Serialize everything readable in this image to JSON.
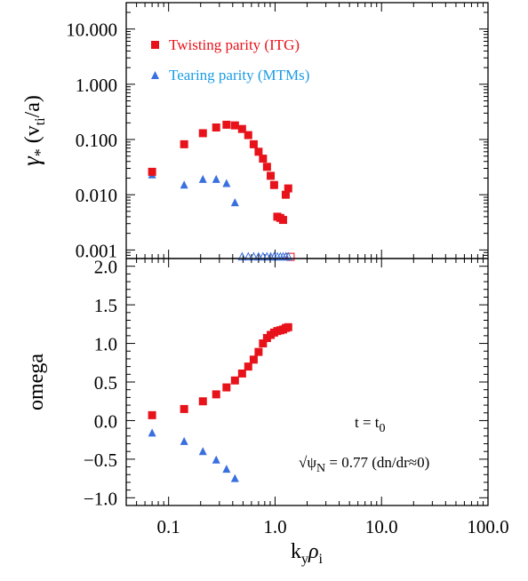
{
  "colors": {
    "twisting": "#e8121a",
    "tearing": "#3a6fe0",
    "tearing_legend_text": "#1a9be6",
    "axis": "#000000"
  },
  "chart_data": [
    {
      "type": "scatter",
      "xscale": "log",
      "yscale": "log",
      "xlim": [
        0.04,
        100
      ],
      "ylim": [
        0.0007,
        30
      ],
      "grid": false,
      "legend_position": "top-left",
      "ylabel": {
        "main": "γ",
        "star": "*",
        "open": "(v",
        "sub": "ti",
        "close": "/a)"
      },
      "yticks": [
        {
          "value": 10,
          "label": "10.000"
        },
        {
          "value": 1,
          "label": "1.000"
        },
        {
          "value": 0.1,
          "label": "0.100"
        },
        {
          "value": 0.01,
          "label": "0.010"
        },
        {
          "value": 0.001,
          "label": "0.001"
        }
      ],
      "series": [
        {
          "name": "Twisting parity (ITG)",
          "marker": "filled-square",
          "color": "#e8121a",
          "x": [
            0.07,
            0.14,
            0.21,
            0.28,
            0.35,
            0.42,
            0.49,
            0.56,
            0.63,
            0.7,
            0.77,
            0.84,
            0.91,
            0.98,
            1.05,
            1.12,
            1.19,
            1.26,
            1.33
          ],
          "y": [
            0.026,
            0.082,
            0.13,
            0.165,
            0.185,
            0.18,
            0.155,
            0.12,
            0.082,
            0.06,
            0.045,
            0.032,
            0.022,
            0.015,
            0.004,
            0.0038,
            0.0035,
            0.01,
            0.013
          ]
        },
        {
          "name": "Tearing parity (MTMs)",
          "marker": "filled-triangle",
          "color": "#3a6fe0",
          "x": [
            0.07,
            0.14,
            0.21,
            0.28,
            0.35,
            0.42
          ],
          "y": [
            0.023,
            0.015,
            0.019,
            0.019,
            0.016,
            0.0072
          ]
        },
        {
          "name": "",
          "marker": "open-triangle",
          "color": "#3a6fe0",
          "x": [
            0.49,
            0.56,
            0.63,
            0.7,
            0.77,
            0.84,
            0.91,
            0.98,
            1.05,
            1.12,
            1.19,
            1.26,
            1.33
          ],
          "y": [
            0.00075,
            0.00075,
            0.00075,
            0.00075,
            0.00075,
            0.00075,
            0.00075,
            0.00075,
            0.00075,
            0.00075,
            0.00075,
            0.00075,
            0.00075
          ]
        },
        {
          "name": "",
          "marker": "open-square",
          "color": "#e8121a",
          "x": [
            1.4
          ],
          "y": [
            0.00075
          ]
        }
      ]
    },
    {
      "type": "scatter",
      "xscale": "log",
      "xlim": [
        0.04,
        100
      ],
      "ylim": [
        -1.1,
        2.1
      ],
      "grid": false,
      "ylabel": "omega",
      "xlabel": {
        "main": "k",
        "sub1": "y",
        "rho": "ρ",
        "sub2": "i"
      },
      "xticks": [
        {
          "value": 0.1,
          "label": "0.1"
        },
        {
          "value": 1,
          "label": "1.0"
        },
        {
          "value": 10,
          "label": "10.0"
        },
        {
          "value": 100,
          "label": "100.0"
        }
      ],
      "yticks": [
        {
          "value": 2.0,
          "label": "2.0"
        },
        {
          "value": 1.5,
          "label": "1.5"
        },
        {
          "value": 1.0,
          "label": "1.0"
        },
        {
          "value": 0.5,
          "label": "0.5"
        },
        {
          "value": 0.0,
          "label": "0.0"
        },
        {
          "value": -0.5,
          "label": "−0.5"
        },
        {
          "value": -1.0,
          "label": "−1.0"
        }
      ],
      "annotations": {
        "time_main": "t = t",
        "time_sub": "0",
        "psi_root": "√ψ",
        "psi_sub": "N",
        "psi_rest": " = 0.77 (dn/dr≈0)"
      },
      "series": [
        {
          "name": "Twisting parity (ITG)",
          "marker": "filled-square",
          "color": "#e8121a",
          "x": [
            0.07,
            0.14,
            0.21,
            0.28,
            0.35,
            0.42,
            0.49,
            0.56,
            0.63,
            0.7,
            0.77,
            0.84,
            0.91,
            0.98,
            1.05,
            1.12,
            1.19,
            1.26,
            1.33
          ],
          "y": [
            0.07,
            0.15,
            0.25,
            0.34,
            0.43,
            0.52,
            0.61,
            0.7,
            0.79,
            0.89,
            1.0,
            1.07,
            1.11,
            1.14,
            1.16,
            1.17,
            1.18,
            1.2,
            1.21
          ]
        },
        {
          "name": "Tearing parity (MTMs)",
          "marker": "filled-triangle",
          "color": "#3a6fe0",
          "x": [
            0.07,
            0.14,
            0.21,
            0.28,
            0.35,
            0.42
          ],
          "y": [
            -0.16,
            -0.27,
            -0.4,
            -0.51,
            -0.63,
            -0.75
          ]
        }
      ]
    }
  ]
}
